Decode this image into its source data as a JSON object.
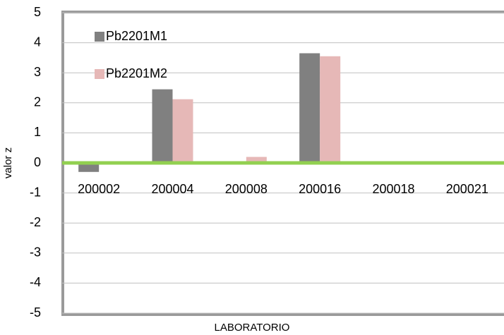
{
  "chart_data": {
    "type": "bar",
    "categories": [
      "200002",
      "200004",
      "200008",
      "200016",
      "200018",
      "200021"
    ],
    "series": [
      {
        "name": "Pb2201M1",
        "color": "#808080",
        "values": [
          -0.3,
          2.45,
          null,
          3.65,
          null,
          null
        ]
      },
      {
        "name": "Pb2201M2",
        "color": "#e6b8b7",
        "values": [
          null,
          2.12,
          0.2,
          3.55,
          null,
          null
        ]
      }
    ],
    "ylabel": "valor z",
    "xlabel": "LABORATORIO",
    "ylim": [
      -5,
      5
    ],
    "yticks": [
      -5,
      -4,
      -3,
      -2,
      -1,
      0,
      1,
      2,
      3,
      4,
      5
    ],
    "grid": true,
    "zero_line_color": "#92d050",
    "legend": "upper left"
  }
}
